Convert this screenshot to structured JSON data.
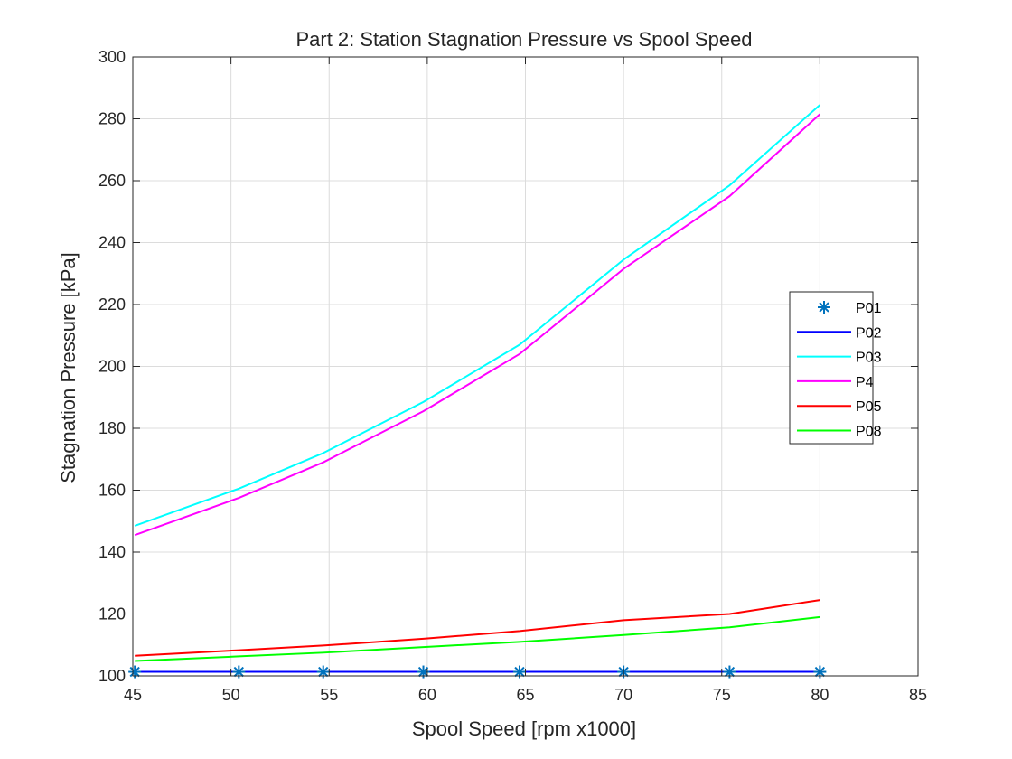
{
  "chart_data": {
    "type": "line",
    "title": "Part 2: Station Stagnation Pressure vs Spool Speed",
    "xlabel": "Spool Speed [rpm x1000]",
    "ylabel": "Stagnation Pressure [kPa]",
    "xlim": [
      45,
      85
    ],
    "ylim": [
      100,
      300
    ],
    "xticks": [
      45,
      50,
      55,
      60,
      65,
      70,
      75,
      80,
      85
    ],
    "yticks": [
      100,
      120,
      140,
      160,
      180,
      200,
      220,
      240,
      260,
      280,
      300
    ],
    "grid": true,
    "legend_position": "east",
    "x": [
      45.1,
      50.4,
      54.7,
      59.8,
      64.7,
      70.0,
      75.4,
      80.0
    ],
    "series": [
      {
        "name": "P01",
        "color": "#0072BD",
        "style": "marker",
        "marker": "asterisk",
        "values": [
          101.3,
          101.3,
          101.3,
          101.3,
          101.3,
          101.3,
          101.3,
          101.3
        ]
      },
      {
        "name": "P02",
        "color": "#0000FF",
        "style": "line",
        "values": [
          101.3,
          101.3,
          101.3,
          101.3,
          101.3,
          101.3,
          101.3,
          101.3
        ]
      },
      {
        "name": "P03",
        "color": "#00FFFF",
        "style": "line",
        "values": [
          148.5,
          160.5,
          172.0,
          188.5,
          207.0,
          234.5,
          258.5,
          284.5
        ]
      },
      {
        "name": "P4",
        "color": "#FF00FF",
        "style": "line",
        "values": [
          145.5,
          157.5,
          169.0,
          185.5,
          204.0,
          231.5,
          255.0,
          281.5
        ]
      },
      {
        "name": "P05",
        "color": "#FF0000",
        "style": "line",
        "values": [
          106.5,
          108.3,
          109.8,
          112.0,
          114.5,
          118.0,
          120.0,
          124.5
        ]
      },
      {
        "name": "P08",
        "color": "#00FF00",
        "style": "line",
        "values": [
          104.8,
          106.3,
          107.5,
          109.3,
          111.0,
          113.2,
          115.7,
          119.0
        ]
      }
    ]
  }
}
